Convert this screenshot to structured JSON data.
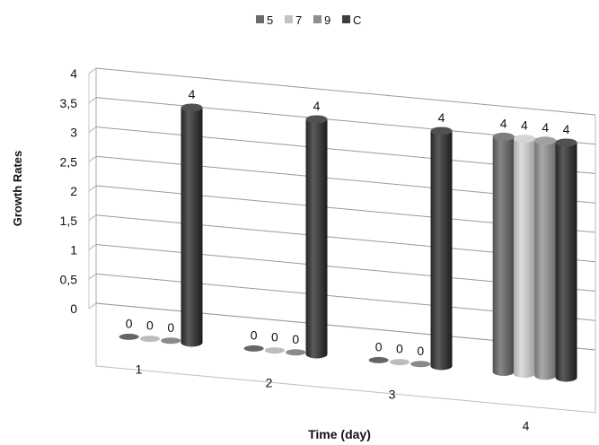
{
  "chart_data": {
    "type": "bar",
    "title": "",
    "xlabel": "Time (day)",
    "ylabel": "Growth Rates",
    "ylim": [
      0,
      4
    ],
    "yticks": [
      "0",
      "0,5",
      "1",
      "1,5",
      "2",
      "2,5",
      "3",
      "3,5",
      "4"
    ],
    "categories": [
      "1",
      "2",
      "3",
      "4"
    ],
    "series": [
      {
        "name": "5",
        "values": [
          0,
          0,
          0,
          4
        ],
        "color": "#6b6b6b"
      },
      {
        "name": "7",
        "values": [
          0,
          0,
          0,
          4
        ],
        "color": "#c2c2c2"
      },
      {
        "name": "9",
        "values": [
          0,
          0,
          0,
          4
        ],
        "color": "#8e8e8e"
      },
      {
        "name": "C",
        "values": [
          4,
          4,
          4,
          4
        ],
        "color": "#3f3f3f"
      }
    ],
    "data_labels": [
      [
        "0",
        "0",
        "0",
        "4"
      ],
      [
        "0",
        "0",
        "0",
        "4"
      ],
      [
        "0",
        "0",
        "0",
        "4"
      ],
      [
        "4",
        "4",
        "4",
        "4"
      ]
    ],
    "legend_position": "top",
    "grid": true,
    "style": "3d-cylinder"
  }
}
